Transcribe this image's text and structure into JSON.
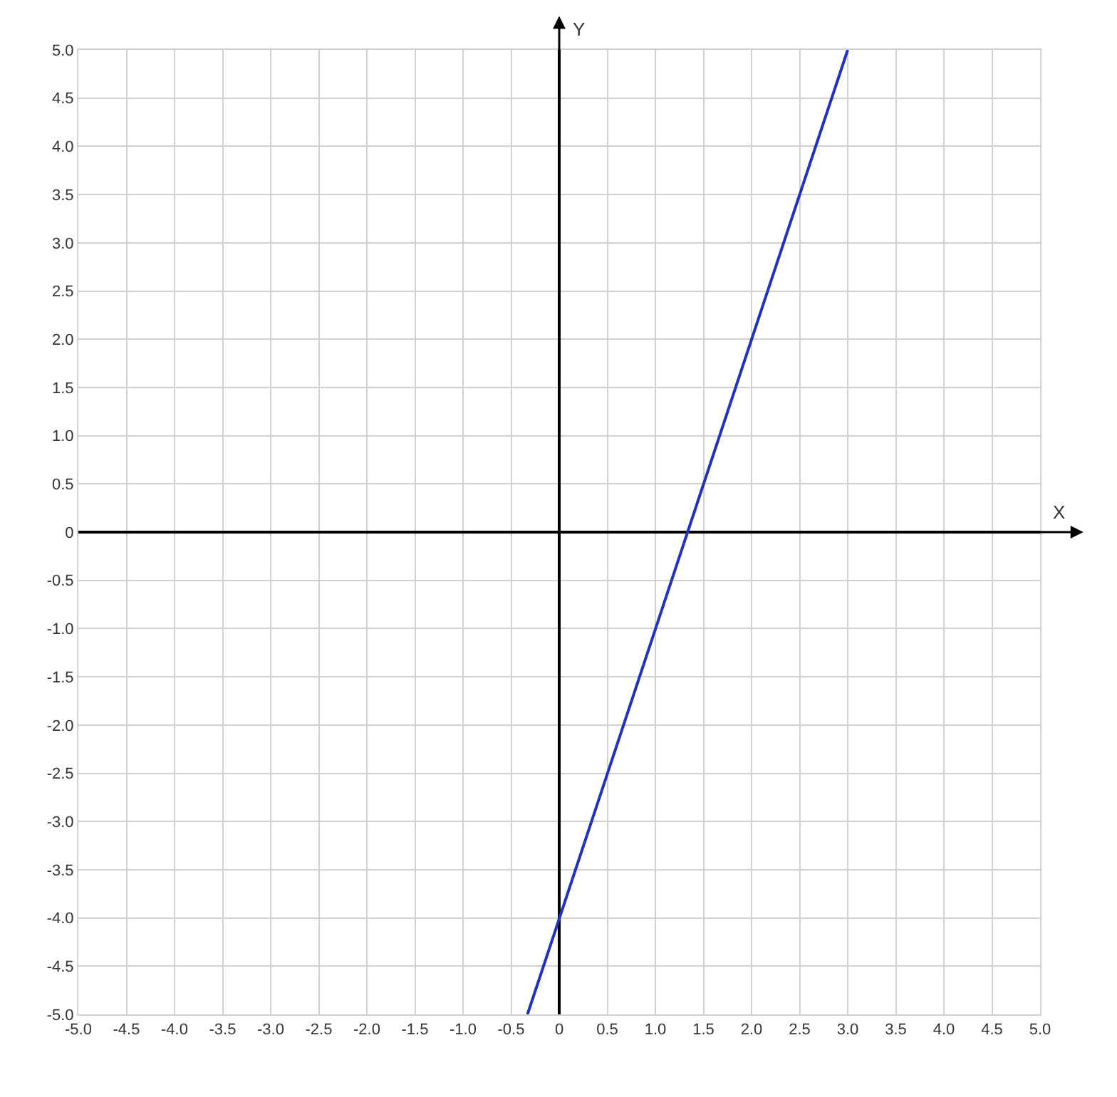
{
  "chart_data": {
    "type": "line",
    "xlabel": "X",
    "ylabel": "Y",
    "x": [
      -0.33,
      3
    ],
    "series": [
      {
        "color": "#2233bb",
        "values": [
          -5,
          5
        ]
      }
    ],
    "xlim": [
      -5,
      5
    ],
    "ylim": [
      -5,
      5
    ],
    "xticks": [
      {
        "value": -5,
        "label": "-5.0"
      },
      {
        "value": -4.5,
        "label": "-4.5"
      },
      {
        "value": -4,
        "label": "-4.0"
      },
      {
        "value": -3.5,
        "label": "-3.5"
      },
      {
        "value": -3,
        "label": "-3.0"
      },
      {
        "value": -2.5,
        "label": "-2.5"
      },
      {
        "value": -2,
        "label": "-2.0"
      },
      {
        "value": -1.5,
        "label": "-1.5"
      },
      {
        "value": -1,
        "label": "-1.0"
      },
      {
        "value": -0.5,
        "label": "-0.5"
      },
      0,
      0.5,
      {
        "value": 1,
        "label": "1.0"
      },
      1.5,
      {
        "value": 2,
        "label": "2.0"
      },
      2.5,
      {
        "value": 3,
        "label": "3.0"
      },
      3.5,
      {
        "value": 4,
        "label": "4.0"
      },
      4.5,
      {
        "value": 5,
        "label": "5.0"
      }
    ],
    "yticks": [
      {
        "value": -5,
        "label": "-5.0"
      },
      {
        "value": -4.5,
        "label": "-4.5"
      },
      {
        "value": -4,
        "label": "-4.0"
      },
      {
        "value": -3.5,
        "label": "-3.5"
      },
      {
        "value": -3,
        "label": "-3.0"
      },
      {
        "value": -2.5,
        "label": "-2.5"
      },
      {
        "value": -2,
        "label": "-2.0"
      },
      {
        "value": -1.5,
        "label": "-1.5"
      },
      {
        "value": -1,
        "label": "-1.0"
      },
      {
        "value": -0.5,
        "label": "-0.5"
      },
      0,
      0.5,
      {
        "value": 1,
        "label": "1.0"
      },
      1.5,
      {
        "value": 2,
        "label": "2.0"
      },
      2.5,
      {
        "value": 3,
        "label": "3.0"
      },
      3.5,
      {
        "value": 4,
        "label": "4.0"
      },
      4.5,
      {
        "value": 5,
        "label": "5.0"
      }
    ],
    "grid": true,
    "marker": "none",
    "line_style": "solid"
  }
}
